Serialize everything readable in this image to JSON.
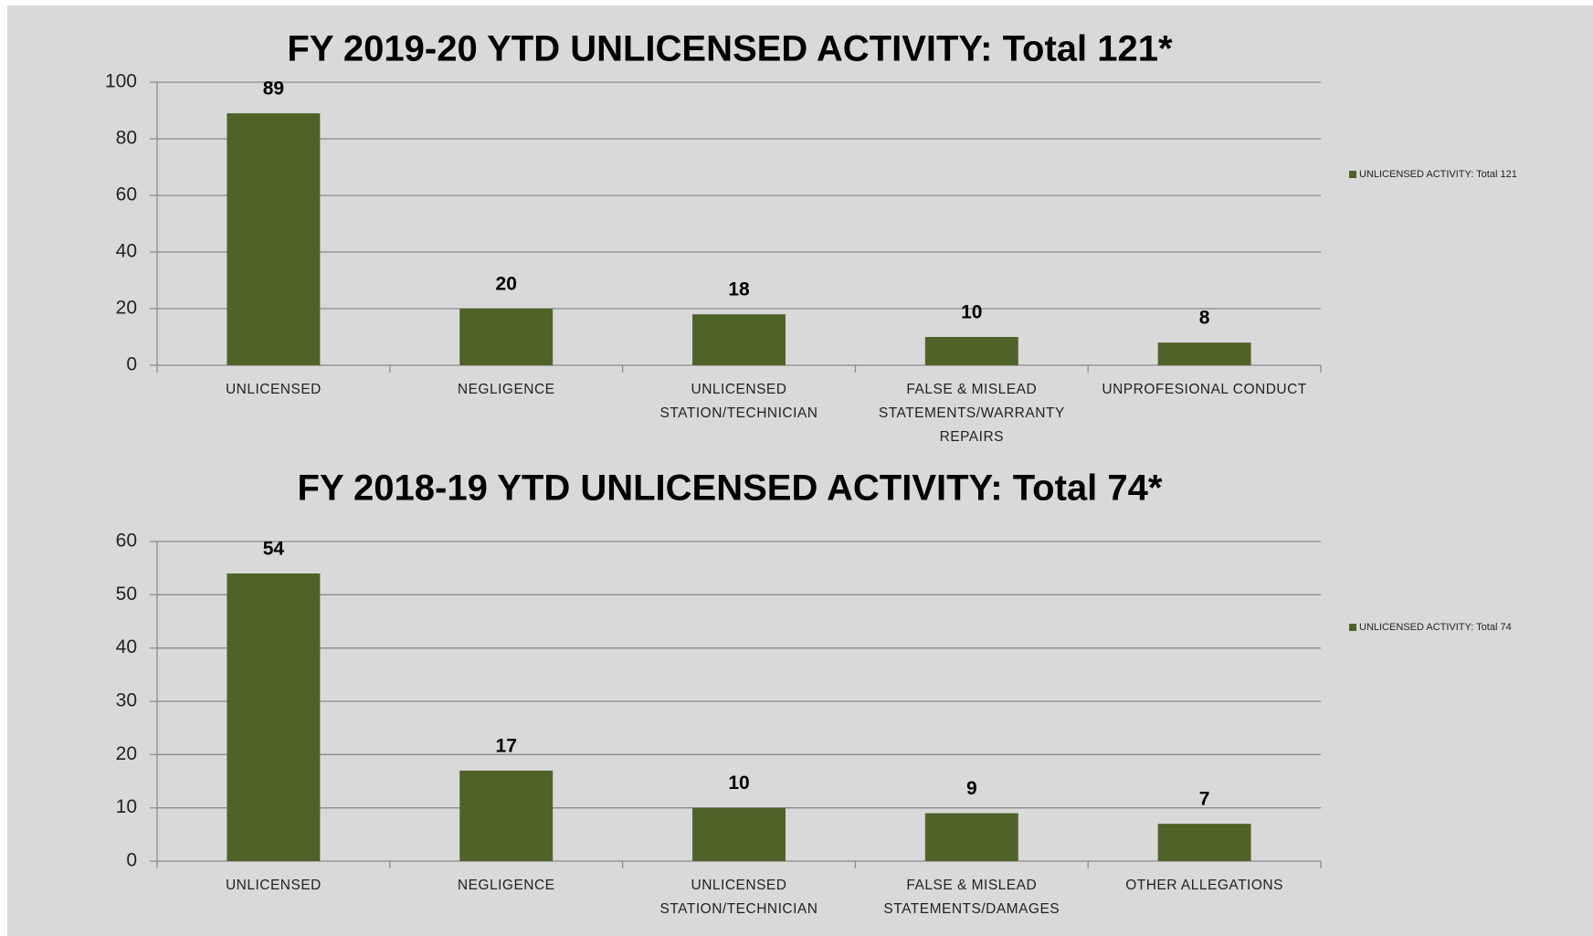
{
  "chart_data": [
    {
      "type": "bar",
      "title": "FY 2019-20 YTD UNLICENSED ACTIVITY: Total 121*",
      "categories": [
        "UNLICENSED",
        "NEGLIGENCE",
        "UNLICENSED STATION/TECHNICIAN",
        "FALSE & MISLEAD STATEMENTS/WARRANTY REPAIRS",
        "UNPROFESIONAL CONDUCT"
      ],
      "series": [
        {
          "name": "UNLICENSED ACTIVITY: Total 121",
          "color": "#4f6228",
          "values": [
            89,
            20,
            18,
            10,
            8
          ]
        }
      ],
      "ylim": [
        0,
        100
      ],
      "yticks": [
        0,
        20,
        40,
        60,
        80,
        100
      ],
      "grid": true,
      "legend": "right"
    },
    {
      "type": "bar",
      "title": "FY 2018-19 YTD UNLICENSED ACTIVITY: Total 74*",
      "categories": [
        "UNLICENSED",
        "NEGLIGENCE",
        "UNLICENSED STATION/TECHNICIAN",
        "FALSE & MISLEAD STATEMENTS/DAMAGES",
        "OTHER ALLEGATIONS"
      ],
      "series": [
        {
          "name": "UNLICENSED ACTIVITY: Total 74",
          "color": "#4f6228",
          "values": [
            54,
            17,
            10,
            9,
            7
          ]
        }
      ],
      "ylim": [
        0,
        60
      ],
      "yticks": [
        0,
        10,
        20,
        30,
        40,
        50,
        60
      ],
      "grid": true,
      "legend": "right"
    }
  ]
}
